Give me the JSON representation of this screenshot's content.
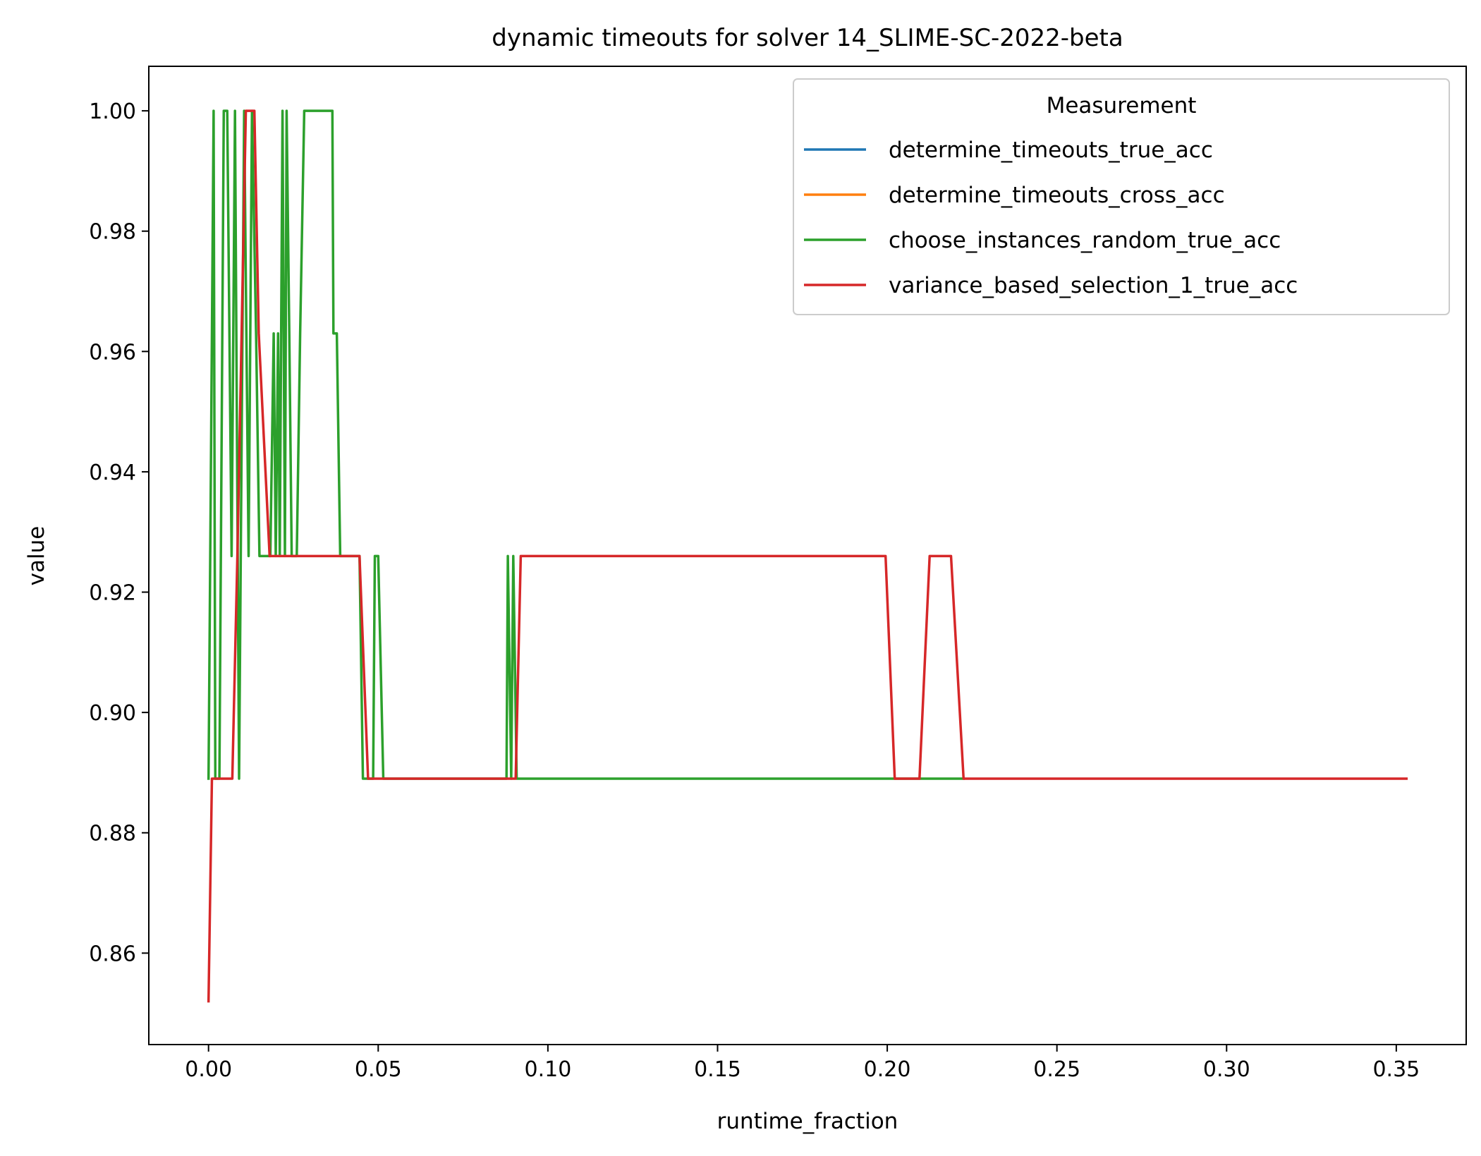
{
  "chart_data": {
    "type": "line",
    "title": "dynamic timeouts for solver 14_SLIME-SC-2022-beta",
    "xlabel": "runtime_fraction",
    "ylabel": "value",
    "xlim": [
      -0.0176,
      0.3706
    ],
    "ylim": [
      0.8448,
      1.0074
    ],
    "xticks": [
      0.0,
      0.05,
      0.1,
      0.15,
      0.2,
      0.25,
      0.3,
      0.35
    ],
    "xtick_labels": [
      "0.00",
      "0.05",
      "0.10",
      "0.15",
      "0.20",
      "0.25",
      "0.30",
      "0.35"
    ],
    "yticks": [
      0.86,
      0.88,
      0.9,
      0.92,
      0.94,
      0.96,
      0.98,
      1.0
    ],
    "ytick_labels": [
      "0.86",
      "0.88",
      "0.90",
      "0.92",
      "0.94",
      "0.96",
      "0.98",
      "1.00"
    ],
    "grid": false,
    "legend": {
      "title": "Measurement",
      "position": "top-right"
    },
    "series": [
      {
        "name": "determine_timeouts_true_acc",
        "color": "#1f77b4",
        "x": [],
        "y": []
      },
      {
        "name": "determine_timeouts_cross_acc",
        "color": "#ff7f0e",
        "x": [],
        "y": []
      },
      {
        "name": "choose_instances_random_true_acc",
        "color": "#2ca02c",
        "x": [
          0.0,
          0.0005,
          0.0015,
          0.002,
          0.0032,
          0.0045,
          0.0055,
          0.0068,
          0.0078,
          0.009,
          0.0095,
          0.0105,
          0.0118,
          0.0128,
          0.014,
          0.015,
          0.016,
          0.0172,
          0.0182,
          0.0192,
          0.0198,
          0.0205,
          0.021,
          0.0218,
          0.0225,
          0.023,
          0.0238,
          0.0245,
          0.0252,
          0.026,
          0.027,
          0.0282,
          0.0292,
          0.0365,
          0.0368,
          0.0378,
          0.0388,
          0.04,
          0.0445,
          0.0455,
          0.0485,
          0.049,
          0.05,
          0.0515,
          0.0878,
          0.0882,
          0.0892,
          0.0898,
          0.0908,
          0.092,
          0.2215,
          0.2225
        ],
        "y": [
          0.889,
          0.926,
          1.0,
          0.889,
          0.889,
          1.0,
          1.0,
          0.926,
          1.0,
          0.889,
          0.926,
          1.0,
          0.926,
          1.0,
          0.963,
          0.926,
          0.926,
          0.926,
          0.926,
          0.963,
          0.926,
          0.963,
          0.926,
          1.0,
          0.926,
          1.0,
          0.963,
          0.926,
          0.926,
          0.926,
          0.963,
          1.0,
          1.0,
          1.0,
          0.963,
          0.963,
          0.926,
          0.926,
          0.926,
          0.889,
          0.889,
          0.926,
          0.926,
          0.889,
          0.889,
          0.926,
          0.889,
          0.926,
          0.889,
          0.889,
          0.889,
          0.889
        ]
      },
      {
        "name": "variance_based_selection_1_true_acc",
        "color": "#d62728",
        "x": [
          0.0,
          0.001,
          0.007,
          0.0085,
          0.011,
          0.0135,
          0.0148,
          0.018,
          0.019,
          0.0445,
          0.047,
          0.0892,
          0.0905,
          0.092,
          0.1995,
          0.2022,
          0.2095,
          0.2125,
          0.2188,
          0.2225,
          0.353
        ],
        "y": [
          0.852,
          0.889,
          0.889,
          0.926,
          1.0,
          1.0,
          0.963,
          0.926,
          0.926,
          0.926,
          0.889,
          0.889,
          0.889,
          0.926,
          0.926,
          0.889,
          0.889,
          0.926,
          0.926,
          0.889,
          0.889
        ]
      }
    ]
  }
}
